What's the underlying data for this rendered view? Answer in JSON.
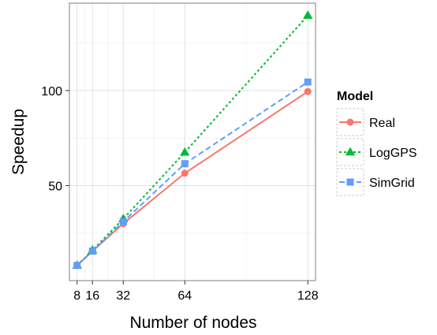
{
  "chart_data": {
    "type": "line",
    "title": "",
    "xlabel": "Number of nodes",
    "ylabel": "Speedup",
    "xlim": [
      4,
      132
    ],
    "ylim": [
      0,
      146
    ],
    "xticks": [
      8,
      16,
      32,
      64,
      128
    ],
    "xtick_labels": [
      "8",
      "16",
      "32",
      "64",
      "128"
    ],
    "yticks": [
      50,
      100
    ],
    "ytick_labels": [
      "50",
      "100"
    ],
    "grid": true,
    "legend": {
      "title": "Model",
      "position": "right"
    },
    "series": [
      {
        "name": "Real",
        "x": [
          8,
          16,
          32,
          64,
          128
        ],
        "y": [
          8,
          15.5,
          30,
          56.5,
          99.5
        ],
        "color": "#f8766d",
        "marker": "circle",
        "dash": "solid"
      },
      {
        "name": "LogGPS",
        "x": [
          8,
          16,
          32,
          64,
          128
        ],
        "y": [
          8,
          16,
          32.5,
          67.5,
          139.5
        ],
        "color": "#00ba38",
        "marker": "triangle",
        "dash": "dotted"
      },
      {
        "name": "SimGrid",
        "x": [
          8,
          16,
          32,
          64,
          128
        ],
        "y": [
          8,
          15.5,
          31,
          61.5,
          104.5
        ],
        "color": "#619cff",
        "marker": "square",
        "dash": "dashed"
      }
    ]
  }
}
